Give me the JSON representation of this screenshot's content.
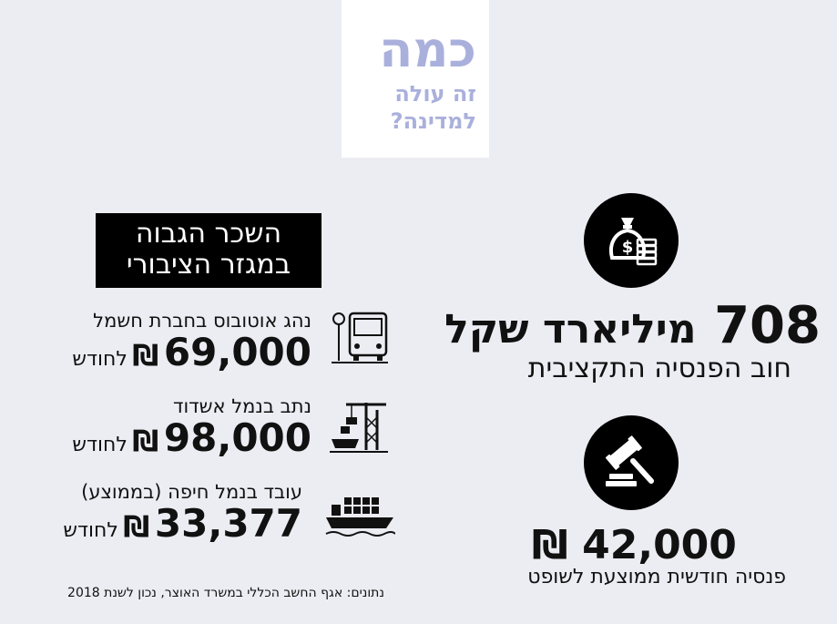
{
  "header": {
    "title_word": "כמה",
    "title_line2": "זה עולה",
    "title_line3": "למדינה?"
  },
  "pension_debt": {
    "amount": "708",
    "unit": "מיליארד שקל",
    "label": "חוב הפנסיה התקציבית",
    "icon": "money-bag-coins-icon"
  },
  "judge_pension": {
    "amount": "42,000",
    "currency": "₪",
    "label": "פנסיה חודשית ממוצעת לשופט",
    "icon": "gavel-icon"
  },
  "salaries": {
    "heading_line1": "השכר הגבוה",
    "heading_line2": "במגזר הציבורי",
    "jobs": [
      {
        "label": "נהג אוטובוס בחברת חשמל",
        "amount": "69,000",
        "currency": "₪",
        "unit": "לחודש",
        "icon": "bus-stop-icon"
      },
      {
        "label": "נתב בנמל אשדוד",
        "amount": "98,000",
        "currency": "₪",
        "unit": "לחודש",
        "icon": "port-crane-icon"
      },
      {
        "label": "עובד בנמל חיפה (בממוצע)",
        "amount": "33,377",
        "currency": "₪",
        "unit": "לחודש",
        "icon": "container-ship-icon"
      }
    ]
  },
  "source": "נתונים: אגף החשב הכללי במשרד האוצר, נכון לשנת 2018",
  "colors": {
    "background": "#ececf3",
    "title": "#aab0dc",
    "dark": "#000000"
  }
}
